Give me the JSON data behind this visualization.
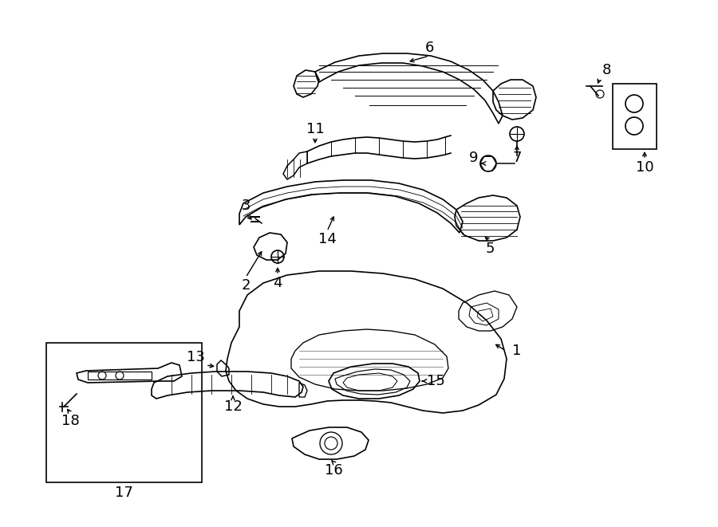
{
  "bg_color": "#ffffff",
  "line_color": "#000000",
  "fig_width": 9.0,
  "fig_height": 6.61,
  "dpi": 100,
  "label_fontsize": 13,
  "arrow_scale": 8
}
